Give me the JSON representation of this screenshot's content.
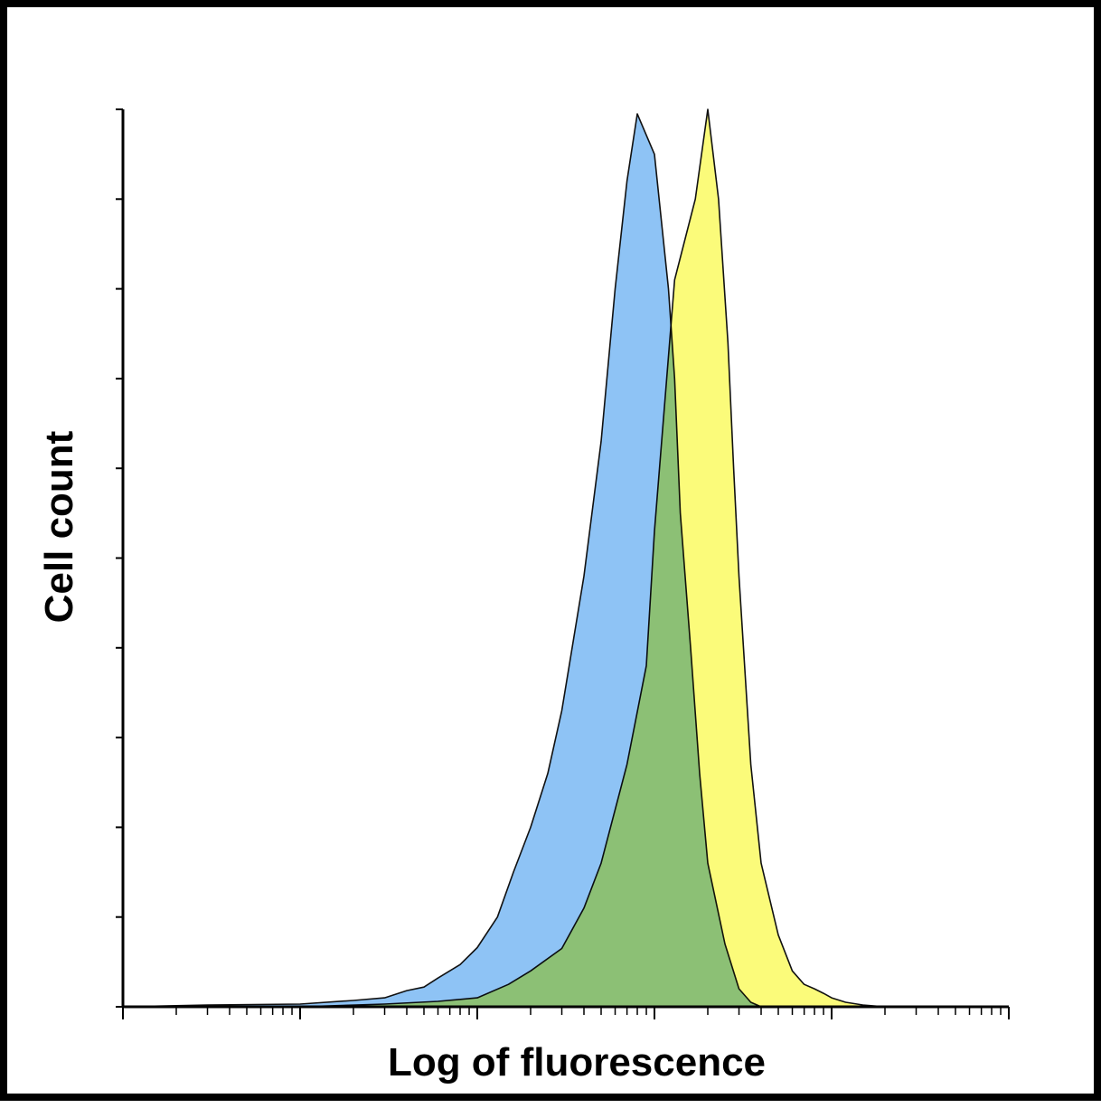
{
  "chart_data": {
    "type": "area",
    "title": "",
    "xlabel": "Log of fluorescence",
    "ylabel": "Cell count",
    "x_scale": "log",
    "xlim": [
      1,
      100000
    ],
    "ylim": [
      0,
      100
    ],
    "grid": false,
    "legend": "none",
    "y_ticks": [
      0,
      10,
      20,
      30,
      40,
      50,
      60,
      70,
      80,
      90,
      100
    ],
    "series": [
      {
        "color": "#8ec3f5",
        "x": [
          1,
          3,
          10,
          20,
          30,
          40,
          50,
          60,
          80,
          100,
          130,
          160,
          200,
          250,
          300,
          400,
          500,
          600,
          700,
          800,
          1000,
          1200,
          1300,
          1400,
          1600,
          1800,
          2000,
          2500,
          3000,
          3500,
          4000
        ],
        "values": [
          0,
          0.2,
          0.3,
          0.7,
          1.0,
          1.8,
          2.2,
          3.2,
          4.7,
          6.6,
          10.0,
          15.0,
          20.0,
          26.0,
          33.0,
          48.0,
          63.0,
          80.0,
          92.0,
          99.5,
          95.0,
          80.0,
          70.0,
          55.0,
          40.0,
          26.0,
          16.0,
          7.0,
          2.0,
          0.5,
          0
        ]
      },
      {
        "color": "#fbfb7a",
        "x": [
          10,
          30,
          60,
          100,
          150,
          200,
          300,
          400,
          500,
          700,
          900,
          1000,
          1300,
          1700,
          2000,
          2300,
          2600,
          2800,
          3000,
          3500,
          4000,
          5000,
          6000,
          7000,
          8000,
          9000,
          10000,
          12000,
          15000,
          20000
        ],
        "values": [
          0,
          0.3,
          0.6,
          1.0,
          2.5,
          4.0,
          6.5,
          11.0,
          16.0,
          27.0,
          38.0,
          53.0,
          81.0,
          90.0,
          100.0,
          90.0,
          74.0,
          60.0,
          48.0,
          27.0,
          16.0,
          8.0,
          4.0,
          2.5,
          2.0,
          1.5,
          1.0,
          0.5,
          0.2,
          0
        ]
      }
    ]
  }
}
